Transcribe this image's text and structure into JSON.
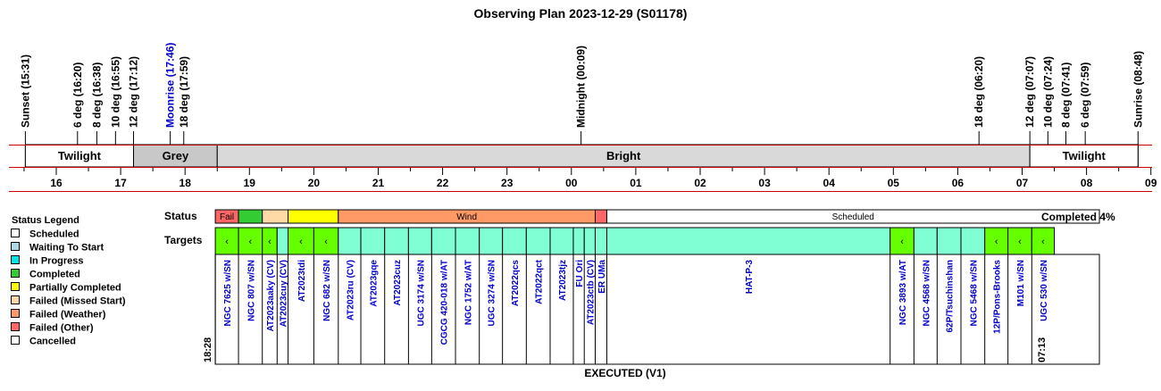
{
  "title": "Observing Plan 2023-12-29 (S01178)",
  "colors": {
    "red_line": "#cc0000",
    "text_blue": "#0000cc",
    "bright": "#d9d9d9",
    "grey": "#c8c8c8",
    "scheduled": "#ffffff",
    "waiting": "#add8e6",
    "in_progress": "#00e5e5",
    "completed": "#33cc33",
    "partial": "#ffff00",
    "missed": "#ffd9a6",
    "weather": "#ff9966",
    "other": "#ff6666",
    "cancelled": "#ffffff",
    "target_fill": "#80ffd5",
    "target_active": "#66ff00"
  },
  "legend": {
    "title": "Status Legend",
    "items": [
      {
        "label": "Scheduled",
        "color": "#ffffff"
      },
      {
        "label": "Waiting To Start",
        "color": "#add8e6"
      },
      {
        "label": "In Progress",
        "color": "#00e5e5"
      },
      {
        "label": "Completed",
        "color": "#33cc33"
      },
      {
        "label": "Partially Completed",
        "color": "#ffff00"
      },
      {
        "label": "Failed (Missed Start)",
        "color": "#ffd9a6"
      },
      {
        "label": "Failed (Weather)",
        "color": "#ff9966"
      },
      {
        "label": "Failed (Other)",
        "color": "#ff6666"
      },
      {
        "label": "Cancelled",
        "color": "#ffffff"
      }
    ]
  },
  "labels": {
    "status": "Status",
    "targets": "Targets",
    "completed": "Completed 4%",
    "executed": "EXECUTED (V1)",
    "start_time": "18:28",
    "end_time": "07:13"
  },
  "chart_data": {
    "type": "timeline",
    "time_unit": "hours since 15:00 local",
    "range": [
      15.0,
      33.0
    ],
    "hour_ticks": [
      "16",
      "17",
      "18",
      "19",
      "20",
      "21",
      "22",
      "23",
      "00",
      "01",
      "02",
      "03",
      "04",
      "05",
      "06",
      "07",
      "08",
      "09"
    ],
    "events": [
      {
        "label": "Sunset (15:31)",
        "t": 15.52,
        "color": "black"
      },
      {
        "label": "6 deg (16:20)",
        "t": 16.33,
        "color": "black"
      },
      {
        "label": "8 deg (16:38)",
        "t": 16.63,
        "color": "black"
      },
      {
        "label": "10 deg (16:55)",
        "t": 16.92,
        "color": "black"
      },
      {
        "label": "12 deg (17:12)",
        "t": 17.2,
        "color": "black"
      },
      {
        "label": "Moonrise (17:46)",
        "t": 17.77,
        "color": "blue"
      },
      {
        "label": "18 deg (17:59)",
        "t": 17.98,
        "color": "black"
      },
      {
        "label": "Midnight (00:09)",
        "t": 24.15,
        "color": "black"
      },
      {
        "label": "18 deg (06:20)",
        "t": 30.33,
        "color": "black"
      },
      {
        "label": "12 deg (07:07)",
        "t": 31.12,
        "color": "black"
      },
      {
        "label": "10 deg (07:24)",
        "t": 31.4,
        "color": "black"
      },
      {
        "label": "8 deg (07:41)",
        "t": 31.68,
        "color": "black"
      },
      {
        "label": "6 deg (07:59)",
        "t": 31.98,
        "color": "black"
      },
      {
        "label": "Sunrise (08:48)",
        "t": 32.8,
        "color": "black"
      }
    ],
    "sky_bands": [
      {
        "label": "Twilight",
        "start": 15.52,
        "end": 17.2,
        "fill": "white"
      },
      {
        "label": "Grey",
        "start": 17.2,
        "end": 18.5,
        "fill": "grey"
      },
      {
        "label": "Bright",
        "start": 18.5,
        "end": 31.12,
        "fill": "bright"
      },
      {
        "label": "Twilight",
        "start": 31.12,
        "end": 32.8,
        "fill": "white"
      }
    ],
    "status_segments": [
      {
        "label": "Fail",
        "start": 18.47,
        "end": 18.83,
        "status": "other"
      },
      {
        "label": "",
        "start": 18.83,
        "end": 19.2,
        "status": "completed"
      },
      {
        "label": "",
        "start": 19.2,
        "end": 19.6,
        "status": "missed"
      },
      {
        "label": "",
        "start": 19.6,
        "end": 20.38,
        "status": "partial"
      },
      {
        "label": "Wind",
        "start": 20.38,
        "end": 24.37,
        "status": "weather"
      },
      {
        "label": "",
        "start": 24.37,
        "end": 24.55,
        "status": "other"
      },
      {
        "label": "Scheduled",
        "start": 24.55,
        "end": 32.2,
        "status": "scheduled"
      }
    ],
    "targets": [
      {
        "name": "NGC 7625 w/SN",
        "start": 18.47,
        "end": 18.83,
        "marked": true
      },
      {
        "name": "NGC 807 w/SN",
        "start": 18.83,
        "end": 19.2,
        "marked": true
      },
      {
        "name": "AT2023aaky (CV)",
        "start": 19.2,
        "end": 19.43,
        "marked": true
      },
      {
        "name": "AT2023cuy (CV)",
        "start": 19.43,
        "end": 19.6,
        "marked": false
      },
      {
        "name": "AT2023tdi",
        "start": 19.6,
        "end": 20.0,
        "marked": true
      },
      {
        "name": "NGC 682 w/SN",
        "start": 20.0,
        "end": 20.38,
        "marked": true
      },
      {
        "name": "AT2023ru (CV)",
        "start": 20.38,
        "end": 20.73,
        "marked": false
      },
      {
        "name": "AT2023gqe",
        "start": 20.73,
        "end": 21.1,
        "marked": false
      },
      {
        "name": "AT2023cuz",
        "start": 21.1,
        "end": 21.47,
        "marked": false
      },
      {
        "name": "UGC 3174 w/SN",
        "start": 21.47,
        "end": 21.83,
        "marked": false
      },
      {
        "name": "CGCG 420-018 w/AT",
        "start": 21.83,
        "end": 22.2,
        "marked": false
      },
      {
        "name": "NGC 1752 w/AT",
        "start": 22.2,
        "end": 22.57,
        "marked": false
      },
      {
        "name": "UGC 3274 w/SN",
        "start": 22.57,
        "end": 22.93,
        "marked": false
      },
      {
        "name": "AT2022qcs",
        "start": 22.93,
        "end": 23.3,
        "marked": false
      },
      {
        "name": "AT2022qct",
        "start": 23.3,
        "end": 23.67,
        "marked": false
      },
      {
        "name": "AT2023tjz",
        "start": 23.67,
        "end": 24.03,
        "marked": false
      },
      {
        "name": "FU Ori",
        "start": 24.03,
        "end": 24.2,
        "marked": false
      },
      {
        "name": "AT2023ctb (CV)",
        "start": 24.2,
        "end": 24.37,
        "marked": false
      },
      {
        "name": "ER UMa",
        "start": 24.37,
        "end": 24.55,
        "marked": false
      },
      {
        "name": "HAT-P-3",
        "start": 24.55,
        "end": 28.95,
        "marked": false
      },
      {
        "name": "NGC 3893 w/AT",
        "start": 28.95,
        "end": 29.32,
        "marked": true
      },
      {
        "name": "NGC 4568 w/SN",
        "start": 29.32,
        "end": 29.68,
        "marked": false
      },
      {
        "name": "62P/Tsuchinshan",
        "start": 29.68,
        "end": 30.05,
        "marked": false
      },
      {
        "name": "NGC 5468 w/SN",
        "start": 30.05,
        "end": 30.42,
        "marked": false
      },
      {
        "name": "12P/Pons-Brooks",
        "start": 30.42,
        "end": 30.78,
        "marked": true
      },
      {
        "name": "M101 w/SN",
        "start": 30.78,
        "end": 31.15,
        "marked": true
      },
      {
        "name": "UGC 530 w/SN",
        "start": 31.15,
        "end": 31.5,
        "marked": true
      }
    ],
    "marker_glyph": "‹"
  }
}
